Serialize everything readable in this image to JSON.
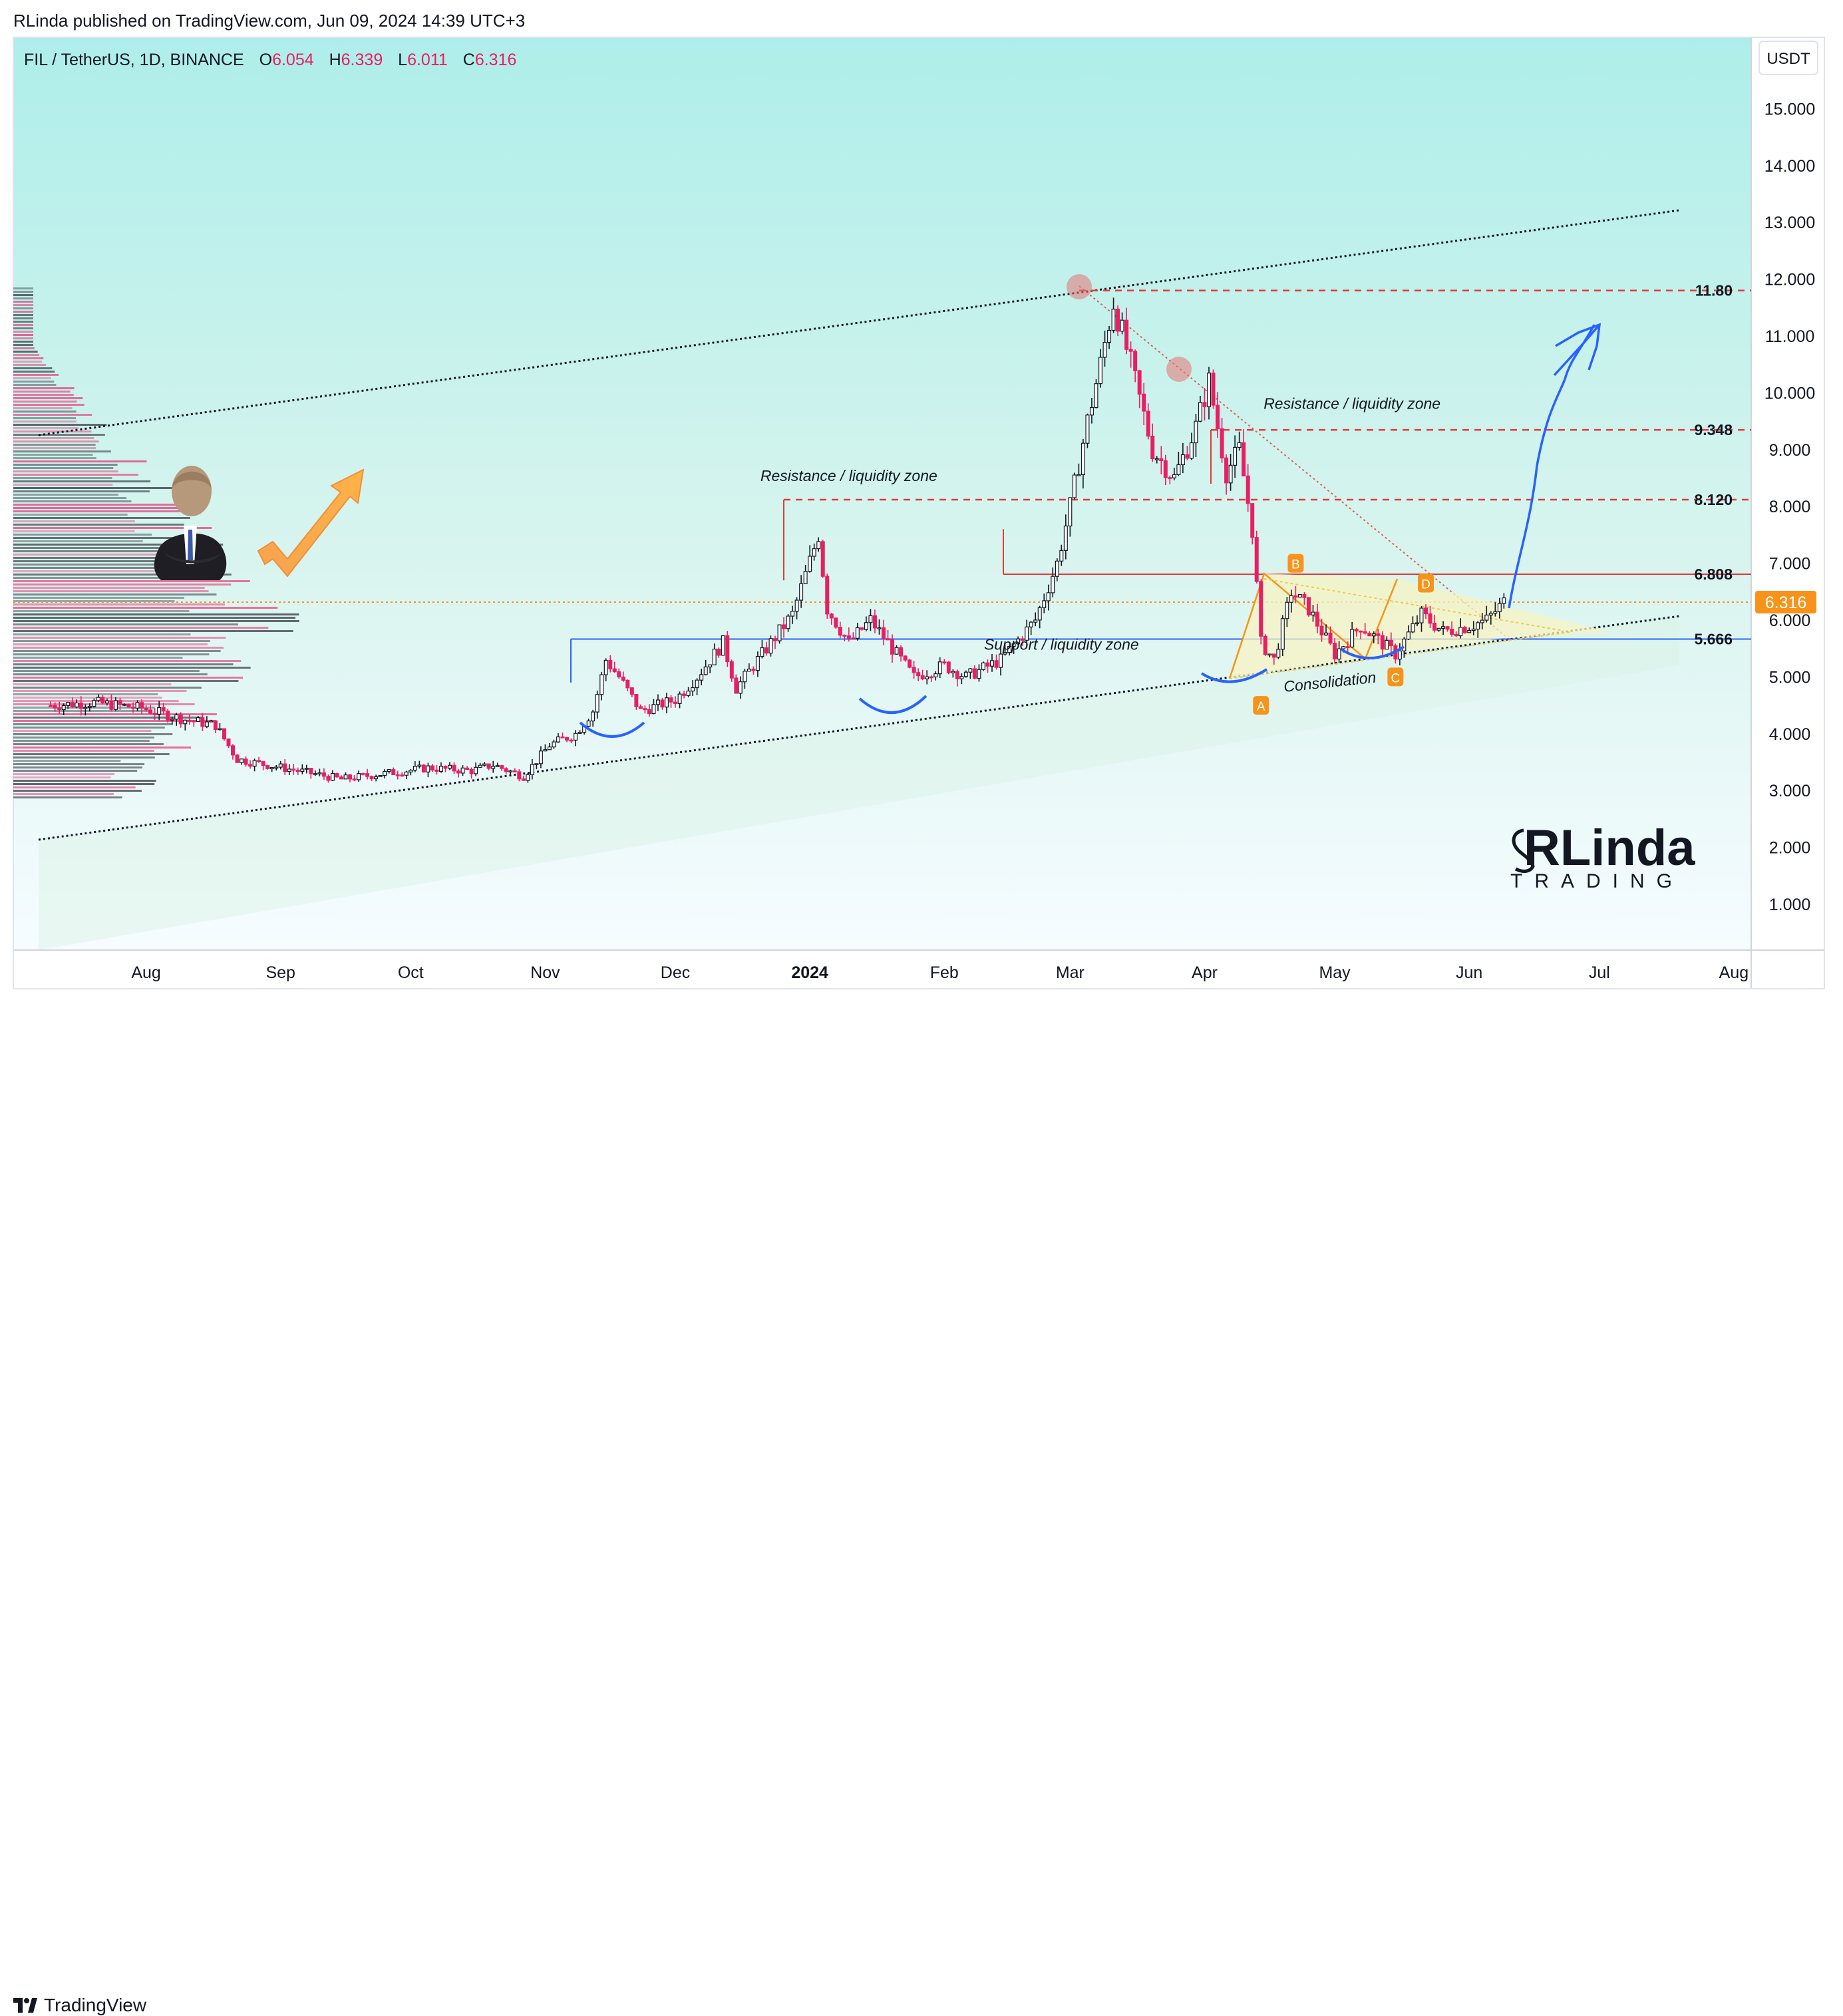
{
  "header": {
    "publisher": "RLinda published on TradingView.com, Jun 09, 2024 14:39 UTC+3"
  },
  "symbol": {
    "name": "FIL / TetherUS, 1D, BINANCE",
    "o_label": "O",
    "o": "6.054",
    "h_label": "H",
    "h": "6.339",
    "l_label": "L",
    "l": "6.011",
    "c_label": "C",
    "c": "6.316",
    "currency_button": "USDT"
  },
  "footer": {
    "brand": "TradingView"
  },
  "watermark": {
    "line1": "RLinda",
    "line2": "TRADING"
  },
  "chart_data": {
    "type": "candlestick",
    "price_axis": {
      "ticks": [
        1,
        2,
        3,
        4,
        5,
        6,
        7,
        8,
        9,
        10,
        11,
        12,
        13,
        14,
        15
      ],
      "tick_labels": [
        "1.000",
        "2.000",
        "3.000",
        "4.000",
        "5.000",
        "6.000",
        "7.000",
        "8.000",
        "9.000",
        "10.000",
        "11.000",
        "12.000",
        "13.000",
        "14.000",
        "15.000"
      ]
    },
    "time_axis": {
      "ticks": [
        {
          "label": "Aug",
          "date": "2023-08-01",
          "bold": false
        },
        {
          "label": "Sep",
          "date": "2023-09-01",
          "bold": false
        },
        {
          "label": "Oct",
          "date": "2023-10-01",
          "bold": false
        },
        {
          "label": "Nov",
          "date": "2023-11-01",
          "bold": false
        },
        {
          "label": "Dec",
          "date": "2023-12-01",
          "bold": false
        },
        {
          "label": "2024",
          "date": "2024-01-01",
          "bold": true
        },
        {
          "label": "Feb",
          "date": "2024-02-01",
          "bold": false
        },
        {
          "label": "Mar",
          "date": "2024-03-01",
          "bold": false
        },
        {
          "label": "Apr",
          "date": "2024-04-01",
          "bold": false
        },
        {
          "label": "May",
          "date": "2024-05-01",
          "bold": false
        },
        {
          "label": "Jun",
          "date": "2024-06-01",
          "bold": false
        },
        {
          "label": "Jul",
          "date": "2024-07-01",
          "bold": false
        },
        {
          "label": "Aug",
          "date": "2024-08-01",
          "bold": false
        }
      ]
    },
    "colors": {
      "up": "#131722",
      "down": "#e91e63",
      "last_price": "#f7931a",
      "support": "#2962ff",
      "resistance": "#e53935"
    },
    "price_path": [
      {
        "date": "2023-07-10",
        "price": 4.5
      },
      {
        "date": "2023-07-20",
        "price": 4.55
      },
      {
        "date": "2023-07-31",
        "price": 4.45
      },
      {
        "date": "2023-08-10",
        "price": 4.25
      },
      {
        "date": "2023-08-17",
        "price": 4.15
      },
      {
        "date": "2023-08-22",
        "price": 3.55
      },
      {
        "date": "2023-09-05",
        "price": 3.35
      },
      {
        "date": "2023-09-15",
        "price": 3.2
      },
      {
        "date": "2023-09-25",
        "price": 3.3
      },
      {
        "date": "2023-10-05",
        "price": 3.4
      },
      {
        "date": "2023-10-15",
        "price": 3.35
      },
      {
        "date": "2023-10-20",
        "price": 3.45
      },
      {
        "date": "2023-10-27",
        "price": 3.25
      },
      {
        "date": "2023-11-02",
        "price": 3.8
      },
      {
        "date": "2023-11-08",
        "price": 4.0
      },
      {
        "date": "2023-11-12",
        "price": 4.4
      },
      {
        "date": "2023-11-15",
        "price": 5.3
      },
      {
        "date": "2023-11-18",
        "price": 5.0
      },
      {
        "date": "2023-11-23",
        "price": 4.4
      },
      {
        "date": "2023-12-01",
        "price": 4.6
      },
      {
        "date": "2023-12-06",
        "price": 5.0
      },
      {
        "date": "2023-12-12",
        "price": 5.6
      },
      {
        "date": "2023-12-15",
        "price": 4.8
      },
      {
        "date": "2023-12-23",
        "price": 5.6
      },
      {
        "date": "2023-12-28",
        "price": 6.1
      },
      {
        "date": "2024-01-03",
        "price": 7.5
      },
      {
        "date": "2024-01-05",
        "price": 6.2
      },
      {
        "date": "2024-01-10",
        "price": 5.6
      },
      {
        "date": "2024-01-15",
        "price": 6.0
      },
      {
        "date": "2024-01-20",
        "price": 5.5
      },
      {
        "date": "2024-01-25",
        "price": 5.0
      },
      {
        "date": "2024-02-01",
        "price": 5.2
      },
      {
        "date": "2024-02-06",
        "price": 5.0
      },
      {
        "date": "2024-02-14",
        "price": 5.3
      },
      {
        "date": "2024-02-22",
        "price": 6.0
      },
      {
        "date": "2024-02-27",
        "price": 7.0
      },
      {
        "date": "2024-03-01",
        "price": 8.0
      },
      {
        "date": "2024-03-05",
        "price": 9.5
      },
      {
        "date": "2024-03-08",
        "price": 10.5
      },
      {
        "date": "2024-03-11",
        "price": 11.6
      },
      {
        "date": "2024-03-15",
        "price": 10.5
      },
      {
        "date": "2024-03-20",
        "price": 9.0
      },
      {
        "date": "2024-03-25",
        "price": 8.5
      },
      {
        "date": "2024-03-30",
        "price": 9.4
      },
      {
        "date": "2024-04-02",
        "price": 10.2
      },
      {
        "date": "2024-04-06",
        "price": 8.6
      },
      {
        "date": "2024-04-09",
        "price": 9.0
      },
      {
        "date": "2024-04-12",
        "price": 7.6
      },
      {
        "date": "2024-04-14",
        "price": 5.6
      },
      {
        "date": "2024-04-17",
        "price": 5.3
      },
      {
        "date": "2024-04-21",
        "price": 6.5
      },
      {
        "date": "2024-04-25",
        "price": 6.2
      },
      {
        "date": "2024-05-01",
        "price": 5.4
      },
      {
        "date": "2024-05-07",
        "price": 5.9
      },
      {
        "date": "2024-05-15",
        "price": 5.4
      },
      {
        "date": "2024-05-21",
        "price": 6.1
      },
      {
        "date": "2024-05-26",
        "price": 5.8
      },
      {
        "date": "2024-06-01",
        "price": 5.9
      },
      {
        "date": "2024-06-05",
        "price": 6.0
      },
      {
        "date": "2024-06-09",
        "price": 6.316
      }
    ],
    "levels": [
      {
        "price": 11.8,
        "label": "11.80",
        "style": "dashed"
      },
      {
        "price": 9.348,
        "label": "9.348",
        "style": "dashed"
      },
      {
        "price": 8.12,
        "label": "8.120",
        "style": "dashed"
      },
      {
        "price": 6.808,
        "label": "6.808",
        "style": "solid"
      },
      {
        "price": 5.666,
        "label": "5.666",
        "style": "solid"
      }
    ],
    "last_price": {
      "price": 6.316,
      "label": "6.316"
    },
    "annotations": [
      {
        "text": "Resistance / liquidity zone",
        "date": "2024-01-10",
        "price": 8.45
      },
      {
        "text": "Resistance / liquidity zone",
        "date": "2024-05-05",
        "price": 9.72
      },
      {
        "text": "Support / liquidity zone",
        "date": "2024-02-28",
        "price": 5.48
      },
      {
        "text": "Consolidation",
        "date": "2024-04-30",
        "price": 4.82
      }
    ],
    "points": [
      {
        "label": "A",
        "date": "2024-04-14",
        "price": 4.5
      },
      {
        "label": "B",
        "date": "2024-04-22",
        "price": 7.0
      },
      {
        "label": "C",
        "date": "2024-05-15",
        "price": 5.0
      },
      {
        "label": "D",
        "date": "2024-05-22",
        "price": 6.65
      }
    ]
  }
}
